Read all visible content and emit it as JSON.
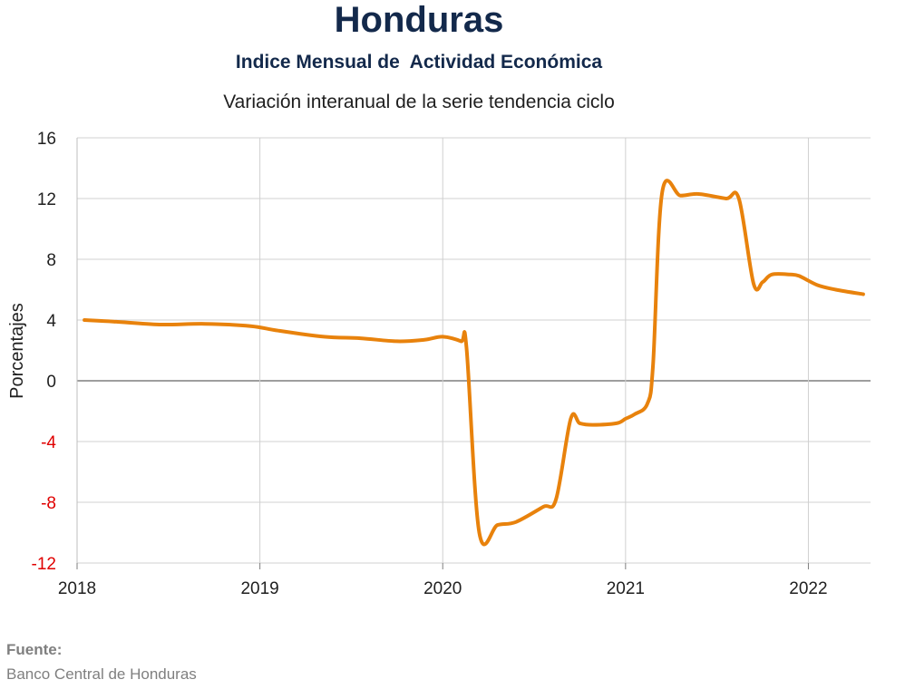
{
  "chart_data": {
    "type": "line",
    "title": "Honduras",
    "subtitle": "Indice Mensual de  Actividad Económica",
    "subtitle2": "Variación interanual de la serie tendencia ciclo",
    "ylabel": "Porcentajes",
    "xlabel": "",
    "ylim": [
      -12,
      16
    ],
    "yticks": [
      "16",
      "12",
      "8",
      "4",
      "0",
      "-4",
      "-8",
      "-12"
    ],
    "xticks": [
      "2018",
      "2019",
      "2020",
      "2021",
      "2022"
    ],
    "xlim": [
      2018,
      2022.34
    ],
    "grid": true,
    "negative_tick_color": "#e00000",
    "line_color": "#e8820c",
    "series": [
      {
        "x": [
          2018.04,
          2018.2,
          2018.45,
          2018.7,
          2018.95,
          2019.1,
          2019.35,
          2019.55,
          2019.75,
          2019.9,
          2020.0,
          2020.1,
          2020.13,
          2020.2,
          2020.3,
          2020.4,
          2020.55,
          2020.62,
          2020.7,
          2020.75,
          2020.82,
          2020.95,
          2021.0,
          2021.05,
          2021.12,
          2021.15,
          2021.2,
          2021.3,
          2021.4,
          2021.55,
          2021.62,
          2021.7,
          2021.75,
          2021.8,
          2021.9,
          2021.95,
          2022.05,
          2022.15,
          2022.3
        ],
        "y": [
          4.0,
          3.9,
          3.7,
          3.75,
          3.6,
          3.3,
          2.9,
          2.8,
          2.6,
          2.7,
          2.9,
          2.6,
          2.2,
          -10.0,
          -9.5,
          -9.3,
          -8.3,
          -7.8,
          -2.5,
          -2.8,
          -2.9,
          -2.8,
          -2.5,
          -2.2,
          -1.5,
          1.0,
          12.4,
          12.2,
          12.3,
          12.0,
          12.0,
          6.4,
          6.5,
          7.0,
          7.0,
          6.9,
          6.3,
          6.0,
          5.7
        ]
      }
    ]
  },
  "source": {
    "label": "Fuente:",
    "text": "Banco Central de Honduras"
  }
}
